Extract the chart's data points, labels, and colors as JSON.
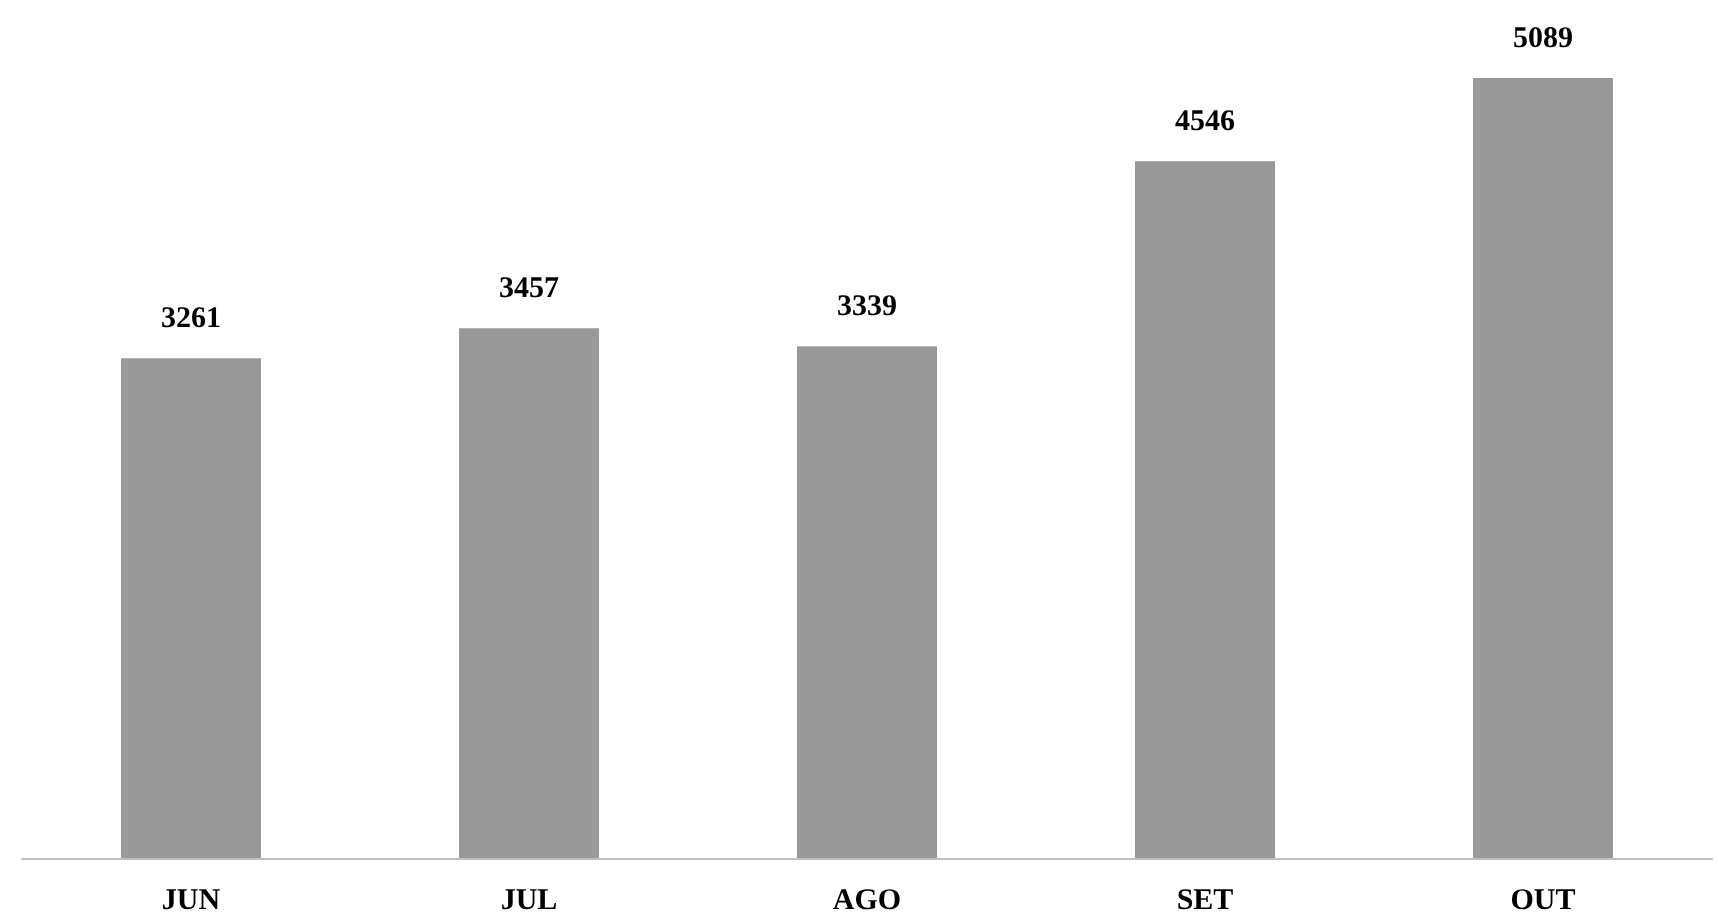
{
  "chart_data": {
    "type": "bar",
    "categories": [
      "JUN",
      "JUL",
      "AGO",
      "SET",
      "OUT"
    ],
    "values": [
      3261,
      3457,
      3339,
      4546,
      5089
    ],
    "color": "#999999",
    "data_labels": true
  }
}
